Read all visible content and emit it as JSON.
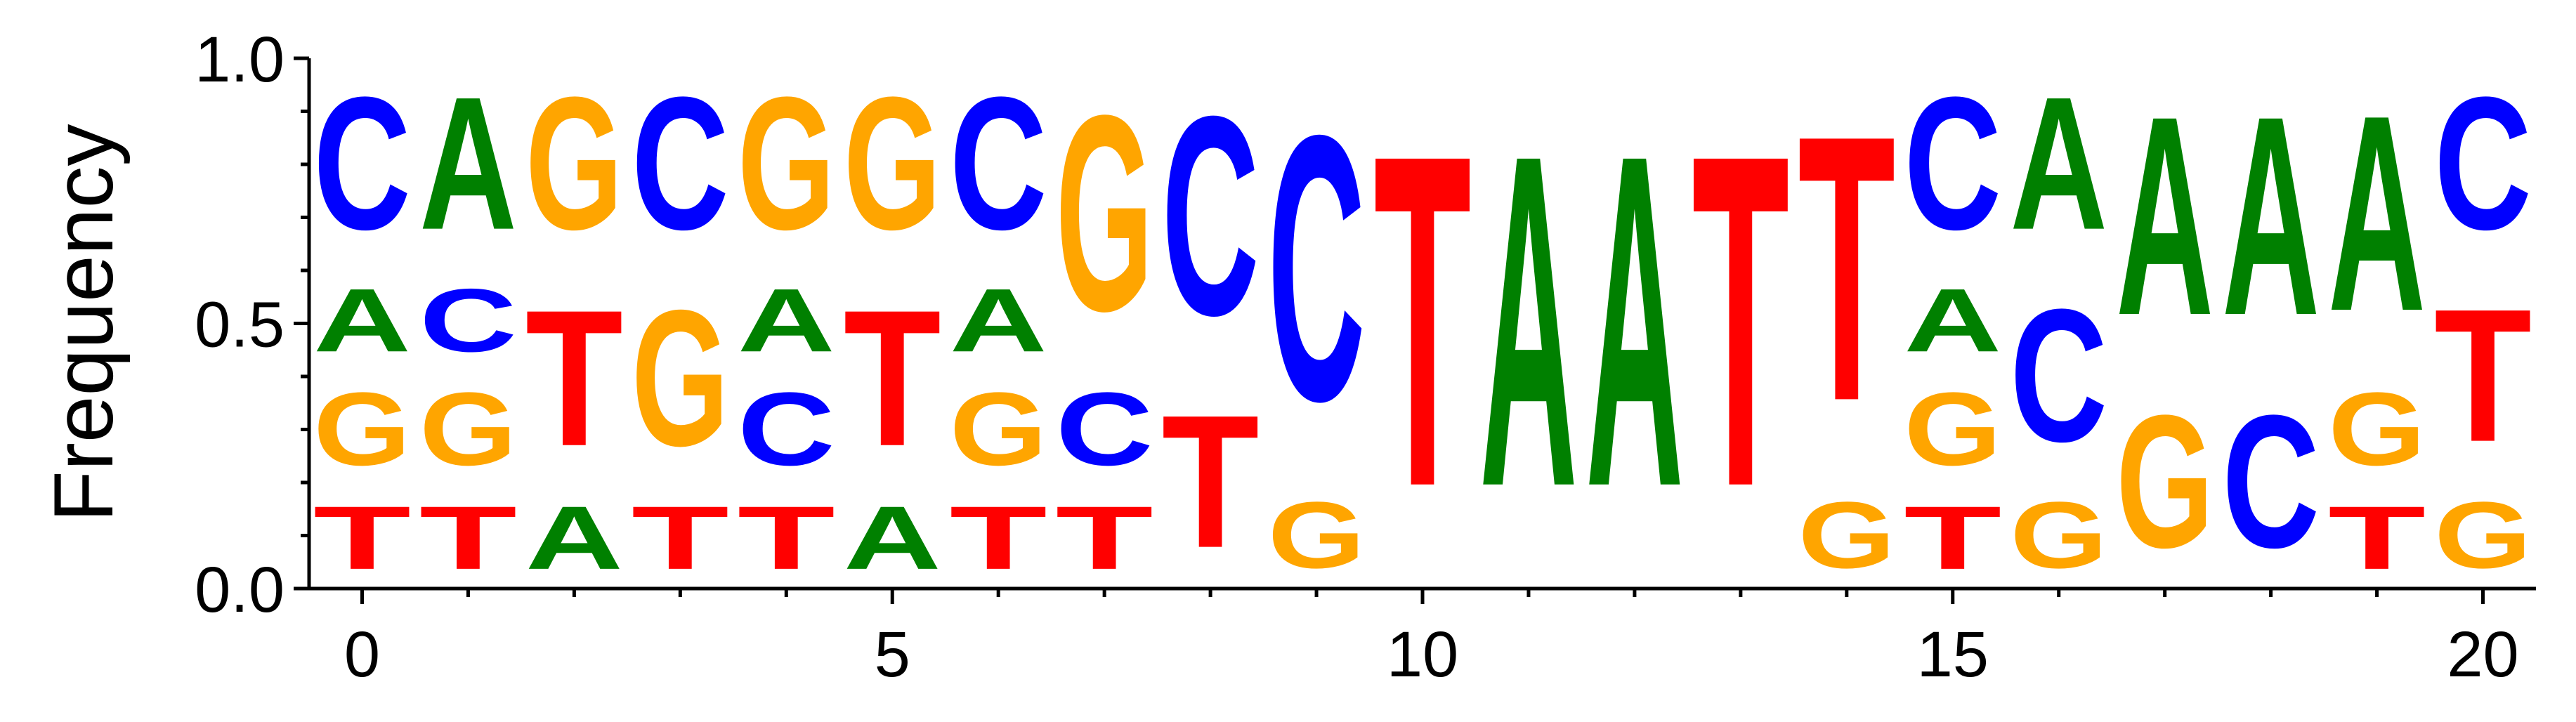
{
  "chart_data": {
    "type": "sequence-logo",
    "ylabel": "Frequency",
    "xlabel": "",
    "ylim": [
      0,
      1
    ],
    "xlim": [
      -0.5,
      20.5
    ],
    "x_ticks": [
      0,
      5,
      10,
      15,
      20
    ],
    "y_ticks": [
      0.0,
      0.5,
      1.0
    ],
    "y_tick_labels": [
      "0.0",
      "0.5",
      "1.0"
    ],
    "y_minor_ticks": [
      0.1,
      0.2,
      0.3,
      0.4,
      0.6,
      0.7,
      0.8,
      0.9
    ],
    "colors": {
      "A": "#008000",
      "C": "#0000ff",
      "G": "#ffa500",
      "T": "#ff0000"
    },
    "positions": [
      {
        "pos": 0,
        "letters": [
          {
            "base": "T",
            "value": 0.19
          },
          {
            "base": "G",
            "value": 0.22
          },
          {
            "base": "A",
            "value": 0.19
          },
          {
            "base": "C",
            "value": 0.4
          }
        ]
      },
      {
        "pos": 1,
        "letters": [
          {
            "base": "T",
            "value": 0.19
          },
          {
            "base": "G",
            "value": 0.22
          },
          {
            "base": "C",
            "value": 0.19
          },
          {
            "base": "A",
            "value": 0.4
          }
        ]
      },
      {
        "pos": 2,
        "letters": [
          {
            "base": "A",
            "value": 0.19
          },
          {
            "base": "T",
            "value": 0.41
          },
          {
            "base": "G",
            "value": 0.4
          }
        ]
      },
      {
        "pos": 3,
        "letters": [
          {
            "base": "T",
            "value": 0.19
          },
          {
            "base": "G",
            "value": 0.41
          },
          {
            "base": "C",
            "value": 0.4
          }
        ]
      },
      {
        "pos": 4,
        "letters": [
          {
            "base": "T",
            "value": 0.19
          },
          {
            "base": "C",
            "value": 0.22
          },
          {
            "base": "A",
            "value": 0.19
          },
          {
            "base": "G",
            "value": 0.4
          }
        ]
      },
      {
        "pos": 5,
        "letters": [
          {
            "base": "A",
            "value": 0.19
          },
          {
            "base": "T",
            "value": 0.41
          },
          {
            "base": "G",
            "value": 0.4
          }
        ]
      },
      {
        "pos": 6,
        "letters": [
          {
            "base": "T",
            "value": 0.19
          },
          {
            "base": "G",
            "value": 0.22
          },
          {
            "base": "A",
            "value": 0.19
          },
          {
            "base": "C",
            "value": 0.4
          }
        ]
      },
      {
        "pos": 7,
        "letters": [
          {
            "base": "T",
            "value": 0.19
          },
          {
            "base": "C",
            "value": 0.22
          },
          {
            "base": "G",
            "value": 0.59
          }
        ]
      },
      {
        "pos": 8,
        "letters": [
          {
            "base": "T",
            "value": 0.4
          },
          {
            "base": "C",
            "value": 0.6
          }
        ]
      },
      {
        "pos": 9,
        "letters": [
          {
            "base": "G",
            "value": 0.2
          },
          {
            "base": "C",
            "value": 0.8
          }
        ]
      },
      {
        "pos": 10,
        "letters": [
          {
            "base": "T",
            "value": 1.0
          }
        ]
      },
      {
        "pos": 11,
        "letters": [
          {
            "base": "A",
            "value": 1.0
          }
        ]
      },
      {
        "pos": 12,
        "letters": [
          {
            "base": "A",
            "value": 1.0
          }
        ]
      },
      {
        "pos": 13,
        "letters": [
          {
            "base": "T",
            "value": 1.0
          }
        ]
      },
      {
        "pos": 14,
        "letters": [
          {
            "base": "G",
            "value": 0.2
          },
          {
            "base": "T",
            "value": 0.8
          }
        ]
      },
      {
        "pos": 15,
        "letters": [
          {
            "base": "T",
            "value": 0.19
          },
          {
            "base": "G",
            "value": 0.22
          },
          {
            "base": "A",
            "value": 0.19
          },
          {
            "base": "C",
            "value": 0.4
          }
        ]
      },
      {
        "pos": 16,
        "letters": [
          {
            "base": "G",
            "value": 0.2
          },
          {
            "base": "C",
            "value": 0.4
          },
          {
            "base": "A",
            "value": 0.4
          }
        ]
      },
      {
        "pos": 17,
        "letters": [
          {
            "base": "G",
            "value": 0.4
          },
          {
            "base": "A",
            "value": 0.6
          }
        ]
      },
      {
        "pos": 18,
        "letters": [
          {
            "base": "C",
            "value": 0.4
          },
          {
            "base": "A",
            "value": 0.6
          }
        ]
      },
      {
        "pos": 19,
        "letters": [
          {
            "base": "T",
            "value": 0.19
          },
          {
            "base": "G",
            "value": 0.22
          },
          {
            "base": "A",
            "value": 0.59
          }
        ]
      },
      {
        "pos": 20,
        "letters": [
          {
            "base": "G",
            "value": 0.2
          },
          {
            "base": "T",
            "value": 0.4
          },
          {
            "base": "C",
            "value": 0.4
          }
        ]
      }
    ]
  }
}
